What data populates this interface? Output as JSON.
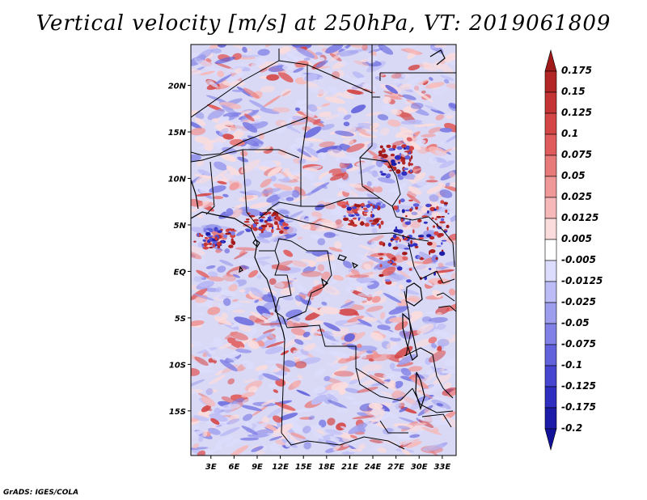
{
  "title": "Vertical velocity [m/s] at 250hPa, VT: 2019061809",
  "footer": "GrADS: IGES/COLA",
  "axes": {
    "lat_labels": [
      "20N",
      "15N",
      "10N",
      "5N",
      "EQ",
      "5S",
      "10S",
      "15S"
    ],
    "lat_values": [
      20,
      15,
      10,
      5,
      0,
      -5,
      -10,
      -15
    ],
    "lon_labels": [
      "3E",
      "6E",
      "9E",
      "12E",
      "15E",
      "18E",
      "21E",
      "24E",
      "27E",
      "30E",
      "33E"
    ],
    "lon_values": [
      3,
      6,
      9,
      12,
      15,
      18,
      21,
      24,
      27,
      30,
      33
    ],
    "lon_range": [
      0.4,
      34.8
    ],
    "lat_range": [
      -19.8,
      24.4
    ]
  },
  "colorbar": {
    "levels": [
      "0.175",
      "0.15",
      "0.125",
      "0.1",
      "0.075",
      "0.05",
      "0.025",
      "0.0125",
      "0.005",
      "-0.005",
      "-0.0125",
      "-0.025",
      "-0.05",
      "-0.075",
      "-0.1",
      "-0.125",
      "-0.175",
      "-0.2"
    ],
    "colors": [
      "#a01a1a",
      "#b22626",
      "#c43434",
      "#d44646",
      "#e05c5c",
      "#e87a7a",
      "#f09898",
      "#f6b8b8",
      "#fbdcdc",
      "#ffffff",
      "#dcdcfc",
      "#bcbcf6",
      "#9e9eee",
      "#8080e6",
      "#6262dc",
      "#4646d0",
      "#2e2ec0",
      "#1c1ca8",
      "#12129a"
    ]
  },
  "colors": {
    "border": "#000000",
    "background": "#ffffff"
  }
}
